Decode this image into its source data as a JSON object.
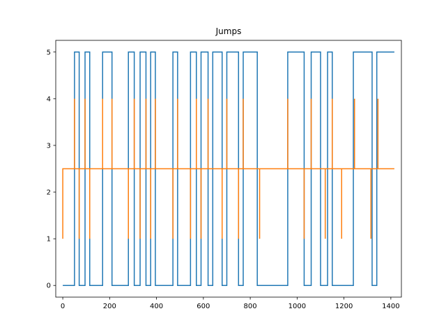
{
  "chart_data": {
    "type": "line",
    "title": "Jumps",
    "xlabel": "",
    "ylabel": "",
    "xlim": [
      -30,
      1445
    ],
    "ylim": [
      -0.25,
      5.25
    ],
    "xticks": [
      0,
      200,
      400,
      600,
      800,
      1000,
      1200,
      1400
    ],
    "yticks": [
      0,
      1,
      2,
      3,
      4,
      5
    ],
    "grid": false,
    "series": [
      {
        "color": "#1f77b4",
        "step": true,
        "x": [
          0,
          50,
          70,
          95,
          115,
          170,
          210,
          280,
          305,
          330,
          355,
          375,
          395,
          470,
          490,
          545,
          570,
          590,
          620,
          640,
          680,
          700,
          750,
          770,
          830,
          840,
          960,
          1030,
          1040,
          1060,
          1100,
          1130,
          1150,
          1190,
          1195,
          1240,
          1320,
          1340,
          1415
        ],
        "y": [
          0,
          5,
          0,
          5,
          0,
          5,
          0,
          5,
          0,
          5,
          0,
          5,
          0,
          5,
          0,
          5,
          0,
          5,
          0,
          5,
          0,
          5,
          0,
          5,
          0,
          0,
          5,
          0,
          0,
          5,
          0,
          5,
          0,
          0,
          0,
          5,
          0,
          5,
          5
        ]
      },
      {
        "color": "#ff7f0e",
        "baseline": 2.5,
        "start": [
          0,
          1
        ],
        "end": 1415,
        "spikes": [
          {
            "x": 50,
            "y": 4
          },
          {
            "x": 70,
            "y": 1
          },
          {
            "x": 95,
            "y": 4
          },
          {
            "x": 115,
            "y": 1
          },
          {
            "x": 170,
            "y": 4
          },
          {
            "x": 210,
            "y": 4
          },
          {
            "x": 280,
            "y": 1
          },
          {
            "x": 305,
            "y": 4
          },
          {
            "x": 330,
            "y": 1
          },
          {
            "x": 355,
            "y": 4
          },
          {
            "x": 375,
            "y": 1
          },
          {
            "x": 395,
            "y": 4
          },
          {
            "x": 470,
            "y": 1
          },
          {
            "x": 490,
            "y": 4
          },
          {
            "x": 545,
            "y": 1
          },
          {
            "x": 570,
            "y": 4
          },
          {
            "x": 590,
            "y": 1
          },
          {
            "x": 620,
            "y": 4
          },
          {
            "x": 680,
            "y": 1
          },
          {
            "x": 700,
            "y": 4
          },
          {
            "x": 750,
            "y": 1
          },
          {
            "x": 770,
            "y": 4
          },
          {
            "x": 840,
            "y": 1
          },
          {
            "x": 960,
            "y": 4
          },
          {
            "x": 1030,
            "y": 1
          },
          {
            "x": 1060,
            "y": 4
          },
          {
            "x": 1120,
            "y": 1
          },
          {
            "x": 1150,
            "y": 4
          },
          {
            "x": 1190,
            "y": 1
          },
          {
            "x": 1245,
            "y": 4
          },
          {
            "x": 1315,
            "y": 1
          },
          {
            "x": 1345,
            "y": 4
          }
        ]
      }
    ]
  }
}
